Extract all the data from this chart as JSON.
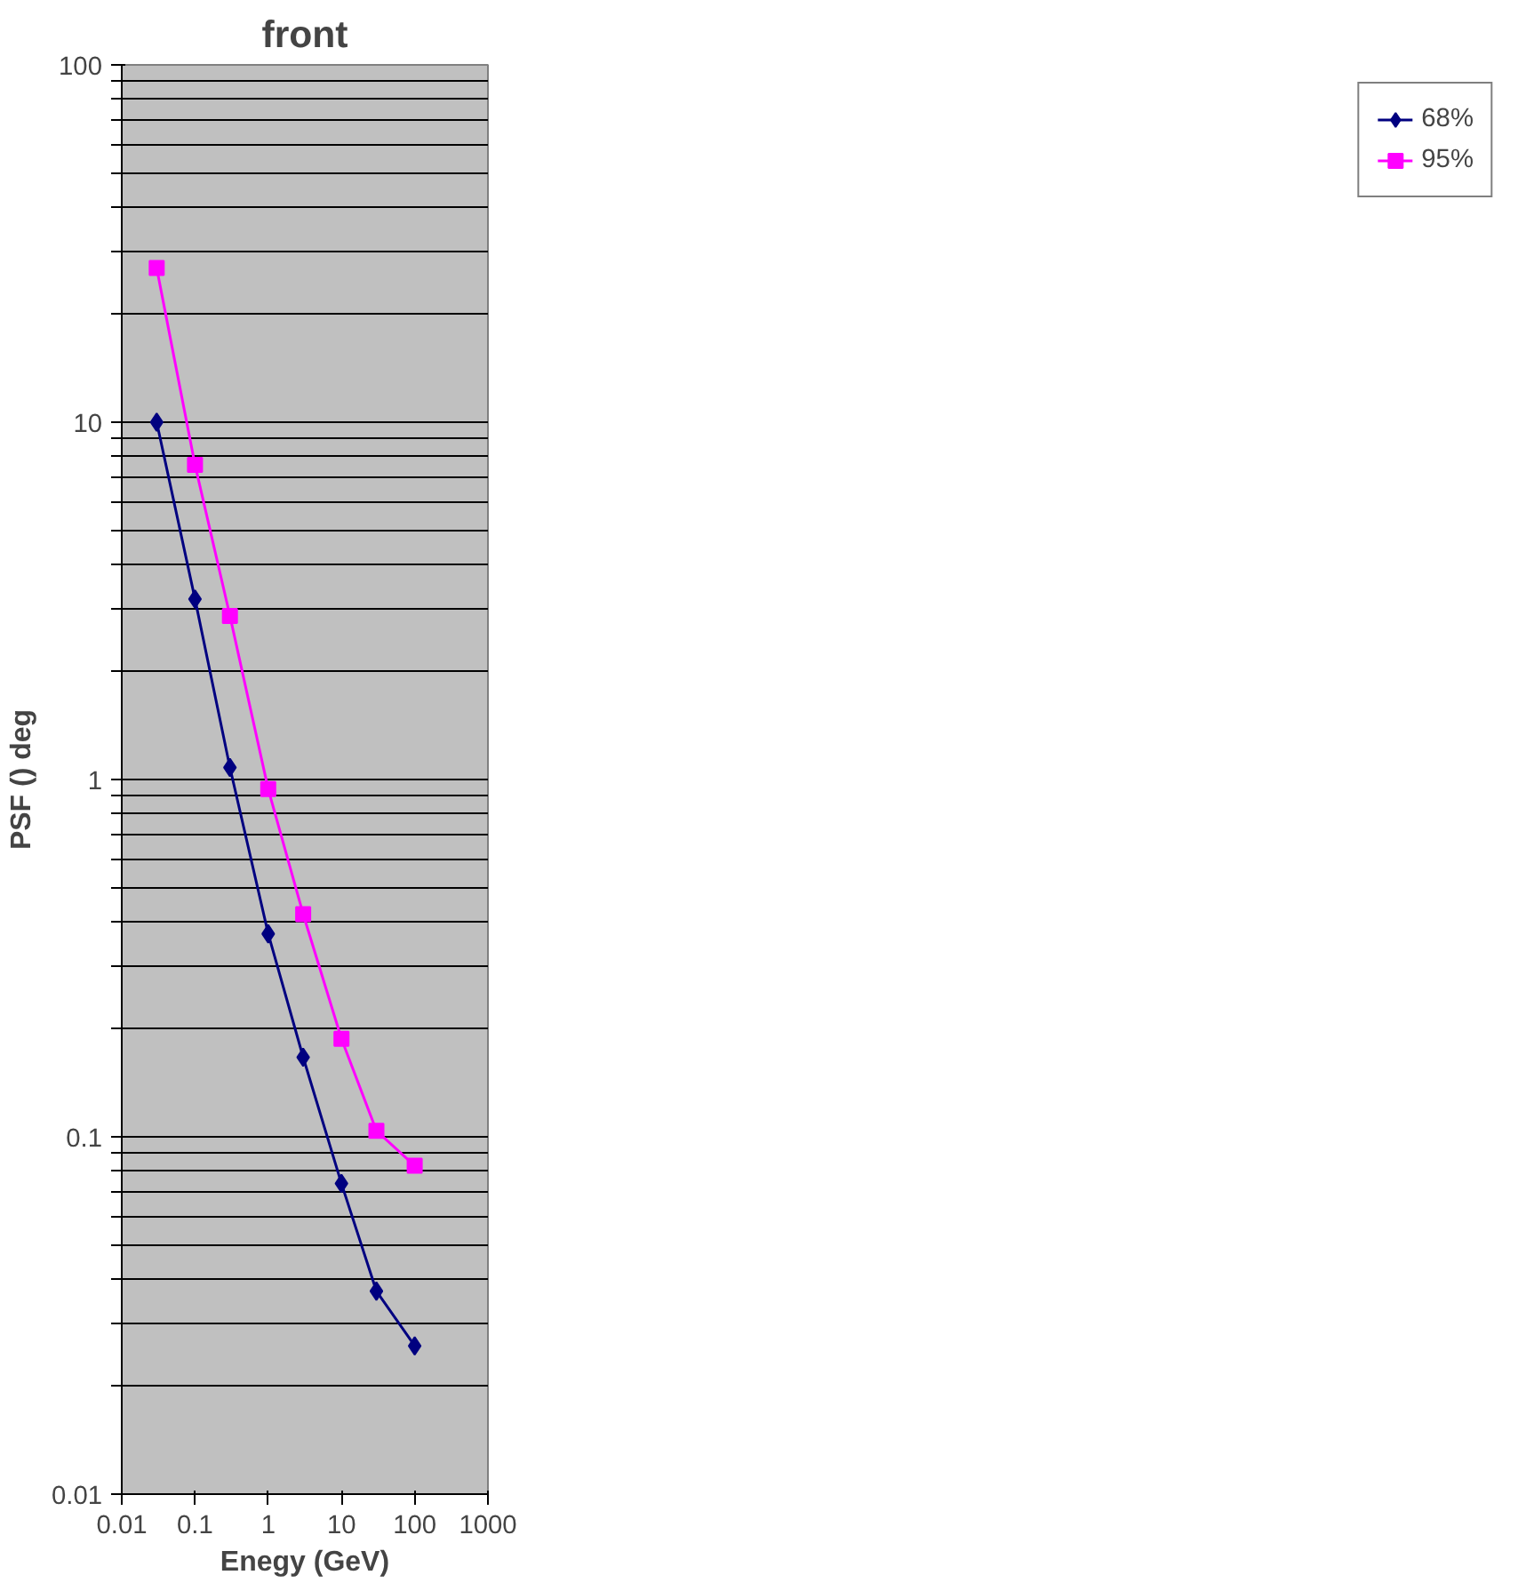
{
  "chart_data": {
    "type": "line",
    "title": "front",
    "xlabel": "Enegy (GeV)",
    "ylabel": "PSF () deg",
    "log": "xy",
    "grid": "y",
    "legend": "right",
    "x": [
      0.03,
      0.1,
      0.3,
      1,
      3,
      10,
      30,
      100
    ],
    "series": [
      {
        "name": "68%",
        "color": "#000080",
        "marker": "diamond",
        "values": [
          10,
          3.2,
          1.08,
          0.37,
          0.167,
          0.074,
          0.037,
          0.026
        ]
      },
      {
        "name": "95%",
        "color": "#ff00ff",
        "marker": "square",
        "values": [
          27,
          7.6,
          2.87,
          0.94,
          0.42,
          0.188,
          0.104,
          0.083
        ]
      }
    ],
    "xlim": [
      0.01,
      1000
    ],
    "xticks": [
      0.01,
      0.1,
      1,
      10,
      100,
      1000
    ],
    "ylim": [
      0.01,
      100
    ],
    "yticks": [
      0.01,
      {
        "value": 0.02,
        "label": null
      },
      {
        "value": 0.03,
        "label": null
      },
      {
        "value": 0.04,
        "label": null
      },
      {
        "value": 0.05,
        "label": null
      },
      {
        "value": 0.06,
        "label": null
      },
      {
        "value": 0.07,
        "label": null
      },
      {
        "value": 0.08,
        "label": null
      },
      {
        "value": 0.09,
        "label": null
      },
      0.1,
      {
        "value": 0.2,
        "label": null
      },
      {
        "value": 0.3,
        "label": null
      },
      {
        "value": 0.4,
        "label": null
      },
      {
        "value": 0.5,
        "label": null
      },
      {
        "value": 0.6,
        "label": null
      },
      {
        "value": 0.7,
        "label": null
      },
      {
        "value": 0.8,
        "label": null
      },
      {
        "value": 0.9,
        "label": null
      },
      1,
      {
        "value": 2,
        "label": null
      },
      {
        "value": 3,
        "label": null
      },
      {
        "value": 4,
        "label": null
      },
      {
        "value": 5,
        "label": null
      },
      {
        "value": 6,
        "label": null
      },
      {
        "value": 7,
        "label": null
      },
      {
        "value": 8,
        "label": null
      },
      {
        "value": 9,
        "label": null
      },
      10,
      {
        "value": 20,
        "label": null
      },
      {
        "value": 30,
        "label": null
      },
      {
        "value": 40,
        "label": null
      },
      {
        "value": 50,
        "label": null
      },
      {
        "value": 60,
        "label": null
      },
      {
        "value": 70,
        "label": null
      },
      {
        "value": 80,
        "label": null
      },
      {
        "value": 90,
        "label": null
      },
      100
    ]
  }
}
